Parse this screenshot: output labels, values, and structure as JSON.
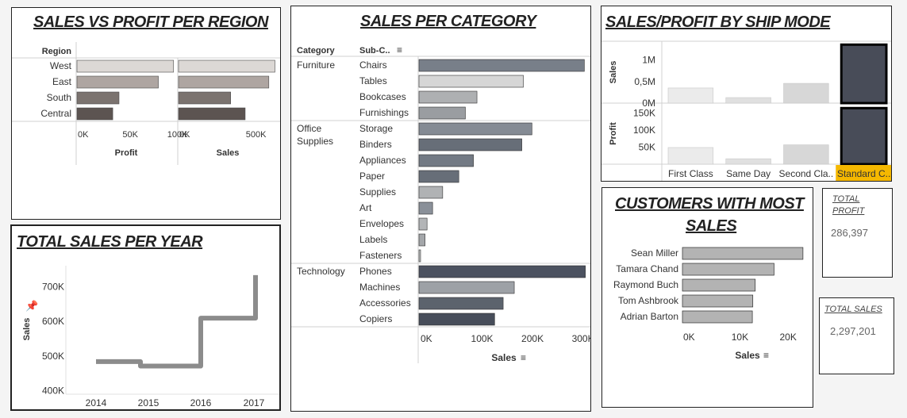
{
  "region_panel": {
    "title": "SALES VS PROFIT PER REGION",
    "region_header": "Region",
    "profit_label": "Profit",
    "sales_label": "Sales"
  },
  "year_panel": {
    "title": "TOTAL SALES PER YEAR",
    "ylabel": "Sales"
  },
  "category_panel": {
    "title": "SALES PER CATEGORY",
    "category_header": "Category",
    "subcat_header": "Sub-C..",
    "xlabel": "Sales"
  },
  "ship_panel": {
    "title": "SALES/PROFIT BY SHIP MODE",
    "sales_label": "Sales",
    "profit_label": "Profit"
  },
  "customer_panel": {
    "title_line1": "CUSTOMERS WITH MOST",
    "title_line2": "SALES",
    "xlabel": "Sales"
  },
  "total_profit": {
    "label_line1": "TOTAL",
    "label_line2": "PROFIT",
    "value": "286,397"
  },
  "total_sales": {
    "label": "TOTAL SALES",
    "value": "2,297,201"
  },
  "chart_data": [
    {
      "id": "region",
      "type": "bar",
      "title": "SALES VS PROFIT PER REGION",
      "categories": [
        "West",
        "East",
        "South",
        "Central"
      ],
      "series": [
        {
          "name": "Profit",
          "values": [
            108000,
            91000,
            47000,
            40000
          ],
          "ticks": [
            "0K",
            "50K",
            "100K"
          ],
          "tick_values": [
            0,
            50000,
            100000
          ],
          "xlim": [
            0,
            110000
          ]
        },
        {
          "name": "Sales",
          "values": [
            725000,
            679000,
            392000,
            501000
          ],
          "ticks": [
            "0K",
            "500K"
          ],
          "tick_values": [
            0,
            500000
          ],
          "xlim": [
            0,
            740000
          ]
        }
      ],
      "colors": [
        "#dcd8d5",
        "#aea5a1",
        "#7b736f",
        "#5c5451"
      ]
    },
    {
      "id": "year",
      "type": "line",
      "title": "TOTAL SALES PER YEAR",
      "x": [
        "2014",
        "2015",
        "2016",
        "2017"
      ],
      "values": [
        484000,
        471000,
        609000,
        733000
      ],
      "ylabel": "Sales",
      "ylim": [
        390000,
        760000
      ],
      "yticks": [
        "400K",
        "500K",
        "600K",
        "700K"
      ],
      "ytick_values": [
        400000,
        500000,
        600000,
        700000
      ],
      "color": "#8c8c8c",
      "step": true
    },
    {
      "id": "category",
      "type": "bar",
      "title": "SALES PER CATEGORY",
      "groups": [
        {
          "category": "Furniture",
          "items": [
            {
              "name": "Chairs",
              "value": 328000,
              "color": "#787f89"
            },
            {
              "name": "Tables",
              "value": 207000,
              "color": "#d6d6d6"
            },
            {
              "name": "Bookcases",
              "value": 115000,
              "color": "#aeb0b2"
            },
            {
              "name": "Furnishings",
              "value": 92000,
              "color": "#9a9da1"
            }
          ]
        },
        {
          "category": "Office Supplies",
          "items": [
            {
              "name": "Storage",
              "value": 224000,
              "color": "#858b94"
            },
            {
              "name": "Binders",
              "value": 204000,
              "color": "#676e78"
            },
            {
              "name": "Appliances",
              "value": 108000,
              "color": "#737a84"
            },
            {
              "name": "Paper",
              "value": 79000,
              "color": "#676e78"
            },
            {
              "name": "Supplies",
              "value": 47000,
              "color": "#b0b2b4"
            },
            {
              "name": "Art",
              "value": 27000,
              "color": "#8a9099"
            },
            {
              "name": "Envelopes",
              "value": 16000,
              "color": "#b3b5b7"
            },
            {
              "name": "Labels",
              "value": 12000,
              "color": "#a4a7aa"
            },
            {
              "name": "Fasteners",
              "value": 3000,
              "color": "#c4c5c6"
            }
          ]
        },
        {
          "category": "Technology",
          "items": [
            {
              "name": "Phones",
              "value": 330000,
              "color": "#4c5260"
            },
            {
              "name": "Machines",
              "value": 189000,
              "color": "#9da1a6"
            },
            {
              "name": "Accessories",
              "value": 167000,
              "color": "#5c636d"
            },
            {
              "name": "Copiers",
              "value": 150000,
              "color": "#474d5a"
            }
          ]
        }
      ],
      "xlabel": "Sales",
      "xticks": [
        "0K",
        "100K",
        "200K",
        "300K"
      ],
      "xtick_values": [
        0,
        100000,
        200000,
        300000
      ],
      "xlim": [
        0,
        340000
      ]
    },
    {
      "id": "shipmode",
      "type": "bar",
      "title": "SALES/PROFIT BY SHIP MODE",
      "categories": [
        "First Class",
        "Same Day",
        "Second Cla..",
        "Standard C.."
      ],
      "highlight": "Standard C..",
      "highlight_color": "#f5b800",
      "series": [
        {
          "name": "Sales",
          "values": [
            351000,
            128000,
            459000,
            1358000
          ],
          "ylim": [
            0,
            1400000
          ],
          "yticks": [
            "0M",
            "0,5M",
            "1M"
          ],
          "ytick_values": [
            0,
            500000,
            1000000
          ]
        },
        {
          "name": "Profit",
          "values": [
            49000,
            16000,
            57000,
            165000
          ],
          "ylim": [
            0,
            175000
          ],
          "yticks": [
            "50K",
            "100K",
            "150K"
          ],
          "ytick_values": [
            50000,
            100000,
            150000
          ]
        }
      ],
      "colors": [
        "#ebebeb",
        "#e0e0e0",
        "#d7d7d7",
        "#484c58"
      ]
    },
    {
      "id": "customers",
      "type": "bar",
      "title": "CUSTOMERS WITH MOST SALES",
      "categories": [
        "Sean Miller",
        "Tamara Chand",
        "Raymond Buch",
        "Tom Ashbrook",
        "Adrian Barton"
      ],
      "values": [
        25000,
        19000,
        15100,
        14600,
        14500
      ],
      "xlabel": "Sales",
      "xticks": [
        "0K",
        "10K",
        "20K"
      ],
      "xtick_values": [
        0,
        10000,
        20000
      ],
      "xlim": [
        0,
        26500
      ],
      "color": "#b3b3b3"
    }
  ]
}
